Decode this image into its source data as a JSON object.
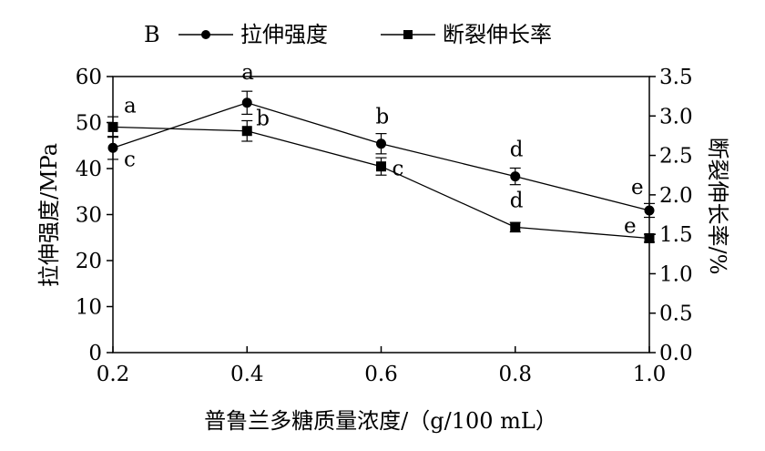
{
  "chart_data": {
    "type": "line",
    "panel_label": "B",
    "x": [
      0.2,
      0.4,
      0.6,
      0.8,
      1.0
    ],
    "xlabel": "普鲁兰多糖质量浓度/（g/100 mL）",
    "ylabel_left": "拉伸强度/MPa",
    "ylabel_right": "断裂伸长率/%",
    "xlim": [
      0.2,
      1.0
    ],
    "ylim_left": [
      0,
      60
    ],
    "ylim_right": [
      0,
      3.5
    ],
    "x_ticks": [
      "0.2",
      "0.4",
      "0.6",
      "0.8",
      "1.0"
    ],
    "y_left_ticks": [
      "0",
      "10",
      "20",
      "30",
      "40",
      "50",
      "60"
    ],
    "y_right_ticks": [
      "0.0",
      "0.5",
      "1.0",
      "1.5",
      "2.0",
      "2.5",
      "3.0",
      "3.5"
    ],
    "grid": false,
    "legend_position": "top",
    "series": [
      {
        "name": "拉伸强度",
        "axis": "left",
        "marker": "circle",
        "values": [
          44.5,
          54.3,
          45.4,
          38.3,
          30.9
        ],
        "errors": [
          2.5,
          2.5,
          2.2,
          1.8,
          1.5
        ],
        "labels": [
          "c",
          "a",
          "b",
          "d",
          "e"
        ]
      },
      {
        "name": "断裂伸长率",
        "axis": "right",
        "marker": "square",
        "values": [
          2.86,
          2.81,
          2.36,
          1.59,
          1.45
        ],
        "errors": [
          0.13,
          0.13,
          0.11,
          0.06,
          0.05
        ],
        "labels": [
          "a",
          "b",
          "c",
          "d",
          "e"
        ]
      }
    ]
  }
}
